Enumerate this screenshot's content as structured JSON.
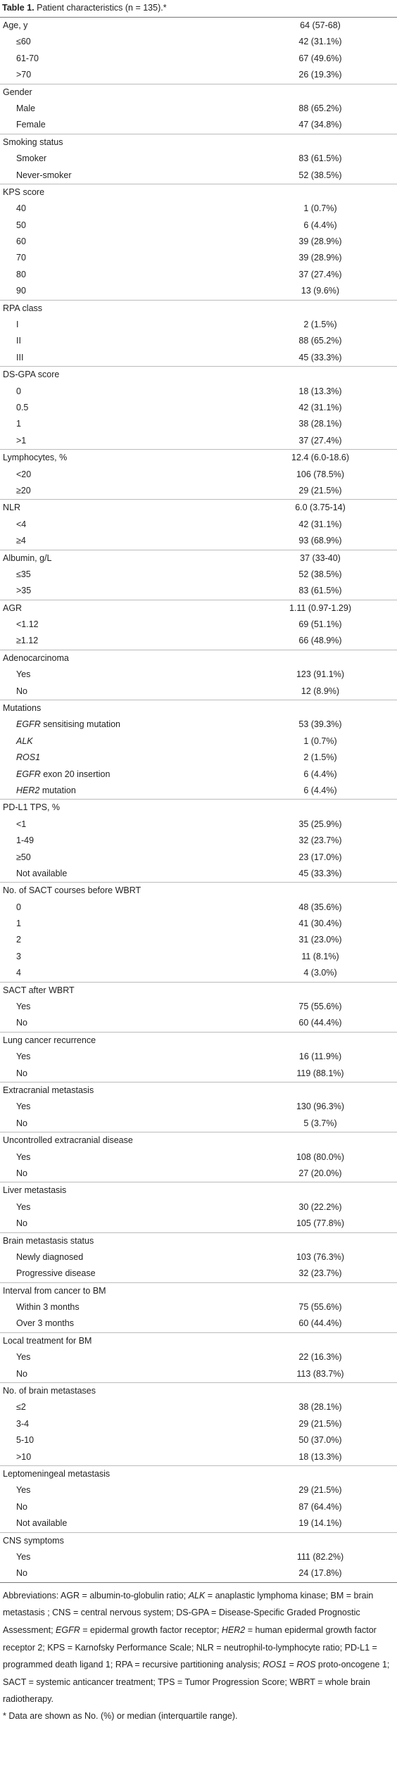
{
  "title": {
    "label": "Table 1.",
    "text": "Patient characteristics (n = 135).*"
  },
  "groups": [
    {
      "label": "Age, y",
      "value": "64 (57-68)",
      "items": [
        {
          "label": "≤60",
          "value": "42 (31.1%)"
        },
        {
          "label": "61-70",
          "value": "67 (49.6%)"
        },
        {
          "label": ">70",
          "value": "26 (19.3%)"
        }
      ]
    },
    {
      "label": "Gender",
      "items": [
        {
          "label": "Male",
          "value": "88 (65.2%)"
        },
        {
          "label": "Female",
          "value": "47 (34.8%)"
        }
      ]
    },
    {
      "label": "Smoking status",
      "items": [
        {
          "label": "Smoker",
          "value": "83 (61.5%)"
        },
        {
          "label": "Never-smoker",
          "value": "52 (38.5%)"
        }
      ]
    },
    {
      "label": "KPS score",
      "items": [
        {
          "label": "40",
          "value": "1 (0.7%)"
        },
        {
          "label": "50",
          "value": "6 (4.4%)"
        },
        {
          "label": "60",
          "value": "39 (28.9%)"
        },
        {
          "label": "70",
          "value": "39 (28.9%)"
        },
        {
          "label": "80",
          "value": "37 (27.4%)"
        },
        {
          "label": "90",
          "value": "13 (9.6%)"
        }
      ]
    },
    {
      "label": "RPA class",
      "items": [
        {
          "label": "I",
          "value": "2 (1.5%)"
        },
        {
          "label": "II",
          "value": "88 (65.2%)"
        },
        {
          "label": "III",
          "value": "45 (33.3%)"
        }
      ]
    },
    {
      "label": "DS-GPA score",
      "items": [
        {
          "label": "0",
          "value": "18 (13.3%)"
        },
        {
          "label": "0.5",
          "value": "42 (31.1%)"
        },
        {
          "label": "1",
          "value": "38 (28.1%)"
        },
        {
          "label": ">1",
          "value": "37 (27.4%)"
        }
      ]
    },
    {
      "label": "Lymphocytes, %",
      "value": "12.4 (6.0-18.6)",
      "items": [
        {
          "label": "<20",
          "value": "106 (78.5%)"
        },
        {
          "label": "≥20",
          "value": "29 (21.5%)"
        }
      ]
    },
    {
      "label": "NLR",
      "value": "6.0 (3.75-14)",
      "items": [
        {
          "label": "<4",
          "value": "42 (31.1%)"
        },
        {
          "label": "≥4",
          "value": "93 (68.9%)"
        }
      ]
    },
    {
      "label": "Albumin, g/L",
      "value": "37 (33-40)",
      "items": [
        {
          "label": "≤35",
          "value": "52 (38.5%)"
        },
        {
          "label": ">35",
          "value": "83 (61.5%)"
        }
      ]
    },
    {
      "label": "AGR",
      "value": "1.11 (0.97-1.29)",
      "items": [
        {
          "label": "<1.12",
          "value": "69 (51.1%)"
        },
        {
          "label": "≥1.12",
          "value": "66 (48.9%)"
        }
      ]
    },
    {
      "label": "Adenocarcinoma",
      "items": [
        {
          "label": "Yes",
          "value": "123 (91.1%)"
        },
        {
          "label": "No",
          "value": "12 (8.9%)"
        }
      ]
    },
    {
      "label": "Mutations",
      "items": [
        {
          "label_italic": "EGFR",
          "label": "sensitising mutation",
          "value": "53 (39.3%)"
        },
        {
          "label_italic": "ALK",
          "value": "1 (0.7%)"
        },
        {
          "label_italic": "ROS1",
          "value": "2 (1.5%)"
        },
        {
          "label_italic": "EGFR",
          "label": "exon 20 insertion",
          "value": "6 (4.4%)"
        },
        {
          "label_italic": "HER2",
          "label": "mutation",
          "value": "6 (4.4%)"
        }
      ]
    },
    {
      "label": "PD-L1 TPS, %",
      "items": [
        {
          "label": "<1",
          "value": "35 (25.9%)"
        },
        {
          "label": "1-49",
          "value": "32 (23.7%)"
        },
        {
          "label": "≥50",
          "value": "23 (17.0%)"
        },
        {
          "label": "Not available",
          "value": "45 (33.3%)"
        }
      ]
    },
    {
      "label": "No. of SACT courses before WBRT",
      "items": [
        {
          "label": "0",
          "value": "48 (35.6%)"
        },
        {
          "label": "1",
          "value": "41 (30.4%)"
        },
        {
          "label": "2",
          "value": "31 (23.0%)"
        },
        {
          "label": "3",
          "value": "11 (8.1%)"
        },
        {
          "label": "4",
          "value": "4 (3.0%)"
        }
      ]
    },
    {
      "label": "SACT after WBRT",
      "items": [
        {
          "label": "Yes",
          "value": "75 (55.6%)"
        },
        {
          "label": "No",
          "value": "60 (44.4%)"
        }
      ]
    },
    {
      "label": "Lung cancer recurrence",
      "items": [
        {
          "label": "Yes",
          "value": "16 (11.9%)"
        },
        {
          "label": "No",
          "value": "119 (88.1%)"
        }
      ]
    },
    {
      "label": "Extracranial metastasis",
      "items": [
        {
          "label": "Yes",
          "value": "130 (96.3%)"
        },
        {
          "label": "No",
          "value": "5 (3.7%)"
        }
      ]
    },
    {
      "label": "Uncontrolled extracranial disease",
      "items": [
        {
          "label": "Yes",
          "value": "108 (80.0%)"
        },
        {
          "label": "No",
          "value": "27 (20.0%)"
        }
      ]
    },
    {
      "label": "Liver metastasis",
      "items": [
        {
          "label": "Yes",
          "value": "30 (22.2%)"
        },
        {
          "label": "No",
          "value": "105 (77.8%)"
        }
      ]
    },
    {
      "label": "Brain metastasis status",
      "items": [
        {
          "label": "Newly diagnosed",
          "value": "103 (76.3%)"
        },
        {
          "label": "Progressive disease",
          "value": "32 (23.7%)"
        }
      ]
    },
    {
      "label": "Interval from cancer to BM",
      "items": [
        {
          "label": "Within 3 months",
          "value": "75 (55.6%)"
        },
        {
          "label": "Over 3 months",
          "value": "60 (44.4%)"
        }
      ]
    },
    {
      "label": "Local treatment for BM",
      "items": [
        {
          "label": "Yes",
          "value": "22 (16.3%)"
        },
        {
          "label": "No",
          "value": "113 (83.7%)"
        }
      ]
    },
    {
      "label": "No. of brain metastases",
      "items": [
        {
          "label": "≤2",
          "value": "38 (28.1%)"
        },
        {
          "label": "3-4",
          "value": "29 (21.5%)"
        },
        {
          "label": "5-10",
          "value": "50 (37.0%)"
        },
        {
          "label": ">10",
          "value": "18 (13.3%)"
        }
      ]
    },
    {
      "label": "Leptomeningeal metastasis",
      "items": [
        {
          "label": "Yes",
          "value": "29 (21.5%)"
        },
        {
          "label": "No",
          "value": "87 (64.4%)"
        },
        {
          "label": "Not available",
          "value": "19 (14.1%)"
        }
      ]
    },
    {
      "label": "CNS symptoms",
      "items": [
        {
          "label": "Yes",
          "value": "111 (82.2%)"
        },
        {
          "label": "No",
          "value": "24 (17.8%)"
        }
      ]
    }
  ],
  "footer": {
    "abbreviations": [
      {
        "text": "Abbreviations: AGR = albumin-to-globulin ratio; "
      },
      {
        "text": "ALK",
        "italic": true
      },
      {
        "text": " = anaplastic lymphoma kinase; BM = brain metastasis ; CNS = central nervous system; DS-GPA = Disease-Specific Graded Prognostic Assessment; "
      },
      {
        "text": "EGFR",
        "italic": true
      },
      {
        "text": " = epidermal growth factor receptor; "
      },
      {
        "text": "HER2",
        "italic": true
      },
      {
        "text": " = human epidermal growth factor receptor 2; KPS = Karnofsky Performance Scale; NLR = neutrophil-to-lymphocyte ratio; PD-L1 = programmed death ligand 1; RPA = recursive partitioning analysis; "
      },
      {
        "text": "ROS1",
        "italic": true
      },
      {
        "text": " = "
      },
      {
        "text": "ROS",
        "italic": true
      },
      {
        "text": " proto-oncogene 1; SACT = systemic anticancer treatment; TPS = Tumor Progression Score; WBRT = whole brain radiotherapy."
      }
    ],
    "note": "* Data are shown as No. (%) or median (interquartile range)."
  }
}
